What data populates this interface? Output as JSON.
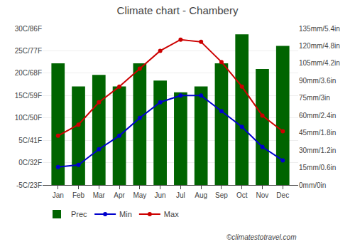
{
  "chart_data": {
    "type": "bar",
    "title": "Climate chart - Chambery",
    "categories": [
      "Jan",
      "Feb",
      "Mar",
      "Apr",
      "May",
      "Jun",
      "Jul",
      "Aug",
      "Sep",
      "Oct",
      "Nov",
      "Dec"
    ],
    "series": [
      {
        "name": "Prec",
        "type": "bar",
        "axis": "y2",
        "color": "#006400",
        "values": [
          105,
          85,
          95,
          85,
          105,
          90,
          80,
          85,
          105,
          130,
          100,
          120
        ]
      },
      {
        "name": "Min",
        "type": "line",
        "marker": "circle",
        "color": "#0000CC",
        "values": [
          -1,
          -0.5,
          3,
          6,
          10,
          13.5,
          15,
          15,
          11.5,
          8,
          3.5,
          0.5
        ]
      },
      {
        "name": "Max",
        "type": "line",
        "marker": "circle",
        "color": "#CC0000",
        "values": [
          6,
          8.5,
          13.5,
          17,
          21,
          25,
          27.5,
          27,
          22.5,
          17,
          10.5,
          7
        ]
      }
    ],
    "ylim": [
      -5,
      30
    ],
    "yticks": [
      {
        "value": -5,
        "label": "-5C/23F"
      },
      {
        "value": 0,
        "label": "0C/32F"
      },
      {
        "value": 5,
        "label": "5C/41F"
      },
      {
        "value": 10,
        "label": "10C/50F"
      },
      {
        "value": 15,
        "label": "15C/59F"
      },
      {
        "value": 20,
        "label": "20C/68F"
      },
      {
        "value": 25,
        "label": "25C/77F"
      },
      {
        "value": 30,
        "label": "30C/86F"
      }
    ],
    "y2lim": [
      0,
      135
    ],
    "y2ticks": [
      {
        "value": 0,
        "label": "0mm/0in"
      },
      {
        "value": 15,
        "label": "15mm/0.6in"
      },
      {
        "value": 30,
        "label": "30mm/1.2in"
      },
      {
        "value": 45,
        "label": "45mm/1.8in"
      },
      {
        "value": 60,
        "label": "60mm/2.4in"
      },
      {
        "value": 75,
        "label": "75mm/3in"
      },
      {
        "value": 90,
        "label": "90mm/3.6in"
      },
      {
        "value": 105,
        "label": "105mm/4.2in"
      },
      {
        "value": 120,
        "label": "120mm/4.8in"
      },
      {
        "value": 135,
        "label": "135mm/5.4in"
      }
    ],
    "grid": true,
    "legend": "bottom",
    "annotations": [
      "©climatestotravel.com"
    ]
  }
}
